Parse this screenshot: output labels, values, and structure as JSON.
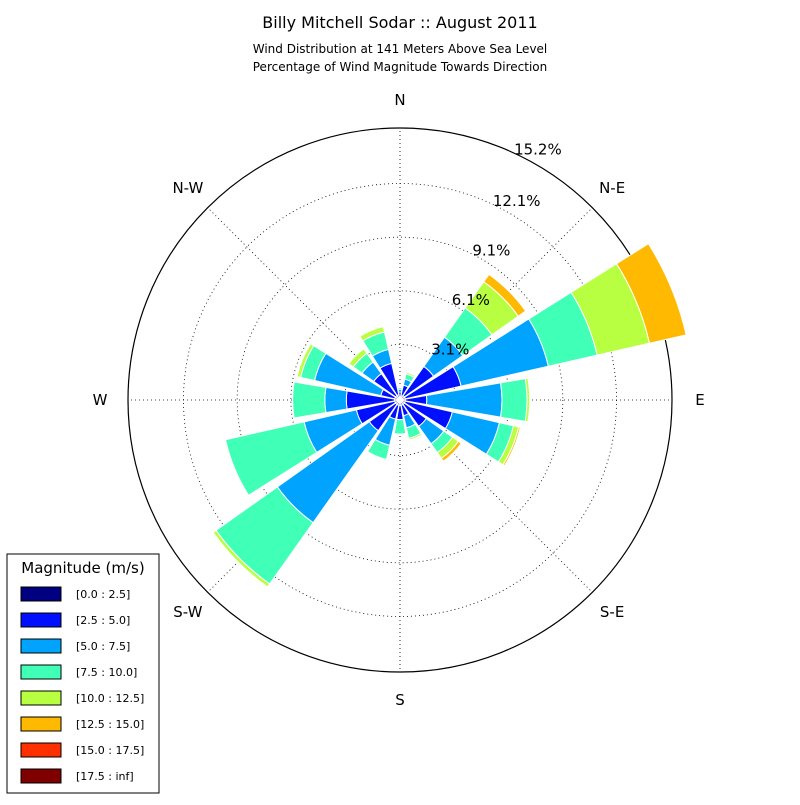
{
  "chart_data": {
    "type": "windrose",
    "title": "Billy Mitchell Sodar :: August 2011",
    "subtitle_lines": [
      "Wind Distribution at 141 Meters Above Sea Level",
      "Percentage of Wind Magnitude Towards Direction"
    ],
    "directions": [
      "N",
      "NNE",
      "NE",
      "ENE",
      "E",
      "ESE",
      "SE",
      "SSE",
      "S",
      "SSW",
      "SW",
      "WSW",
      "W",
      "WNW",
      "NW",
      "NNW"
    ],
    "compass_labels": [
      {
        "text": "N",
        "angle": 0
      },
      {
        "text": "N-E",
        "angle": 45
      },
      {
        "text": "E",
        "angle": 90
      },
      {
        "text": "S-E",
        "angle": 135
      },
      {
        "text": "S",
        "angle": 180
      },
      {
        "text": "S-W",
        "angle": 225
      },
      {
        "text": "W",
        "angle": 270
      },
      {
        "text": "N-W",
        "angle": 315
      }
    ],
    "r_ticks": [
      3.1,
      6.1,
      9.1,
      12.1,
      15.2
    ],
    "r_tick_labels": [
      "3.1%",
      "6.1%",
      "9.1%",
      "12.1%",
      "15.2%"
    ],
    "r_max": 15.2,
    "legend_title": "Magnitude (m/s)",
    "legend_placement": "bottom-left",
    "series": [
      {
        "name": "[0.0 : 2.5]",
        "color": "#000080",
        "values": [
          0.15,
          0.25,
          0.3,
          0.3,
          0.3,
          0.3,
          0.3,
          0.3,
          0.3,
          0.3,
          0.3,
          0.3,
          0.3,
          0.3,
          0.3,
          0.3
        ]
      },
      {
        "name": "[2.5 : 5.0]",
        "color": "#0010ff",
        "values": [
          0.3,
          0.6,
          2.0,
          3.2,
          1.2,
          2.7,
          1.5,
          0.6,
          0.8,
          0.8,
          1.8,
          2.2,
          2.7,
          0.8,
          1.5,
          1.8
        ]
      },
      {
        "name": "[5.0 : 7.5]",
        "color": "#00a4ff",
        "values": [
          0.15,
          0.35,
          2.0,
          5.0,
          4.2,
          2.7,
          1.2,
          0.7,
          0.0,
          1.5,
          6.3,
          3.0,
          1.2,
          3.8,
          0.8,
          0.8
        ]
      },
      {
        "name": "[7.5 : 10.0]",
        "color": "#40ffb7",
        "values": [
          0.1,
          0.3,
          2.0,
          2.8,
          1.4,
          0.8,
          0.6,
          0.6,
          0.8,
          0.8,
          4.2,
          4.5,
          1.8,
          0.8,
          0.6,
          1.0
        ]
      },
      {
        "name": "[10.0 : 12.5]",
        "color": "#b7ff40",
        "values": [
          0.05,
          0.1,
          1.8,
          3.0,
          0.15,
          0.3,
          0.4,
          0.1,
          0.0,
          0.0,
          0.2,
          0.0,
          0.0,
          0.2,
          0.3,
          0.3
        ]
      },
      {
        "name": "[12.5 : 15.0]",
        "color": "#ffb900",
        "values": [
          0.0,
          0.0,
          0.5,
          2.1,
          0.0,
          0.1,
          0.2,
          0.0,
          0.0,
          0.0,
          0.0,
          0.0,
          0.0,
          0.0,
          0.0,
          0.0
        ]
      },
      {
        "name": "[15.0 : 17.5]",
        "color": "#ff3000",
        "values": [
          0.0,
          0.0,
          0.0,
          0.0,
          0.0,
          0.05,
          0.05,
          0.0,
          0.0,
          0.0,
          0.0,
          0.0,
          0.0,
          0.0,
          0.0,
          0.0
        ]
      },
      {
        "name": "[17.5 : inf]",
        "color": "#800000",
        "values": [
          0.0,
          0.0,
          0.0,
          0.0,
          0.0,
          0.0,
          0.0,
          0.0,
          0.0,
          0.0,
          0.0,
          0.0,
          0.0,
          0.0,
          0.0,
          0.0
        ]
      }
    ]
  }
}
